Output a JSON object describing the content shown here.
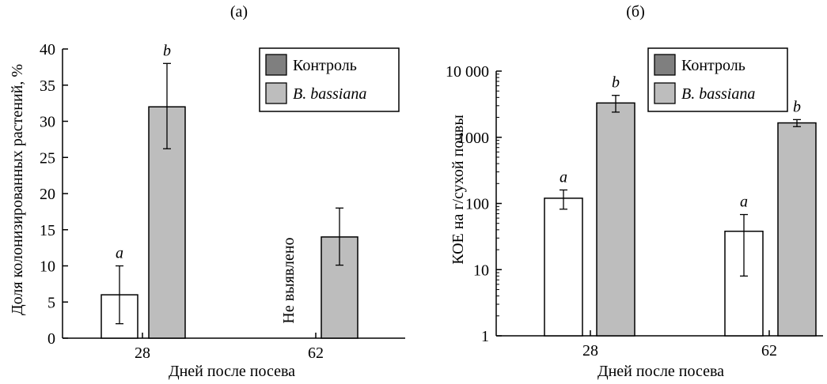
{
  "colors": {
    "control": "#7f7f7f",
    "treated": "#bdbdbd",
    "open_bar": "#ffffff",
    "stroke": "#000000"
  },
  "chart_data": [
    {
      "type": "bar",
      "title": "(а)",
      "xlabel": "Дней после посева",
      "ylabel": "Доля колонизированных растений, %",
      "categories": [
        "28",
        "62"
      ],
      "ylim": [
        0,
        40
      ],
      "yticks": [
        0,
        5,
        10,
        15,
        20,
        25,
        30,
        35,
        40
      ],
      "ytick_labels": [
        "0",
        "5",
        "10",
        "15",
        "20",
        "25",
        "30",
        "35",
        "40"
      ],
      "legend": {
        "position": "top-right",
        "entries": [
          {
            "label": "Контроль",
            "color": "#7f7f7f",
            "italic": false
          },
          {
            "label": "B. bassiana",
            "color": "#bdbdbd",
            "italic": true
          }
        ]
      },
      "bars": [
        {
          "category": "28",
          "fill": "white",
          "value": 6,
          "err_low": 2,
          "err_high": 10,
          "label": "a"
        },
        {
          "category": "28",
          "fill": "gray",
          "value": 32,
          "err_low": 26.2,
          "err_high": 38,
          "label": "b"
        },
        {
          "category": "62",
          "fill": "gray",
          "value": 14,
          "err_low": 10.1,
          "err_high": 18,
          "label": ""
        }
      ],
      "annotations": [
        {
          "text": "Не выявлено",
          "category": "62",
          "orientation": "vertical"
        }
      ]
    },
    {
      "type": "bar",
      "title": "(б)",
      "xlabel": "Дней после посева",
      "ylabel": "КОЕ на г/сухой почвы",
      "categories": [
        "28",
        "62"
      ],
      "yscale": "log",
      "ylim": [
        1,
        10000
      ],
      "yticks": [
        1,
        10,
        100,
        1000,
        10000
      ],
      "ytick_labels": [
        "1",
        "10",
        "100",
        "1000",
        "10 000"
      ],
      "legend": {
        "position": "top-right",
        "entries": [
          {
            "label": "Контроль",
            "color": "#7f7f7f",
            "italic": false
          },
          {
            "label": "B. bassiana",
            "color": "#bdbdbd",
            "italic": true
          }
        ]
      },
      "bars": [
        {
          "category": "28",
          "fill": "white",
          "value": 120,
          "err_low": 82,
          "err_high": 160,
          "label": "a"
        },
        {
          "category": "28",
          "fill": "gray",
          "value": 3300,
          "err_low": 2400,
          "err_high": 4300,
          "label": "b"
        },
        {
          "category": "62",
          "fill": "white",
          "value": 38,
          "err_low": 8,
          "err_high": 68,
          "label": "a"
        },
        {
          "category": "62",
          "fill": "gray",
          "value": 1650,
          "err_low": 1450,
          "err_high": 1850,
          "label": "b"
        }
      ]
    }
  ]
}
